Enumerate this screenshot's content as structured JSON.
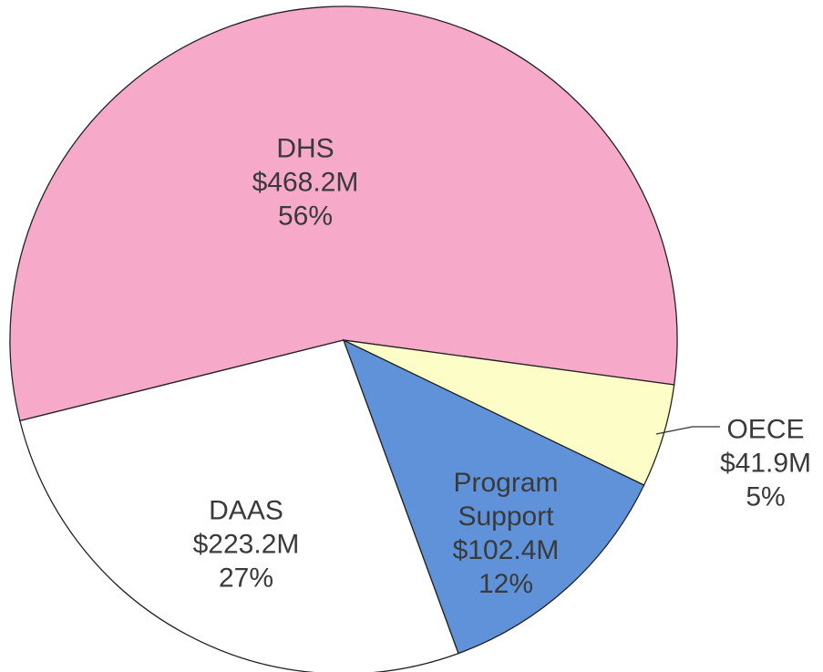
{
  "chart_data": {
    "type": "pie",
    "categories": [
      "DHS",
      "DAAS",
      "Program Support",
      "OECE"
    ],
    "values": [
      468.2,
      223.2,
      102.4,
      41.9
    ],
    "value_labels": [
      "$468.2M",
      "$223.2M",
      "$102.4M",
      "$41.9M"
    ],
    "percent_labels": [
      "56%",
      "27%",
      "12%",
      "5%"
    ],
    "colors": [
      "#f6a9c9",
      "#ffffff",
      "#5f92d8",
      "#fdfdc8"
    ]
  }
}
